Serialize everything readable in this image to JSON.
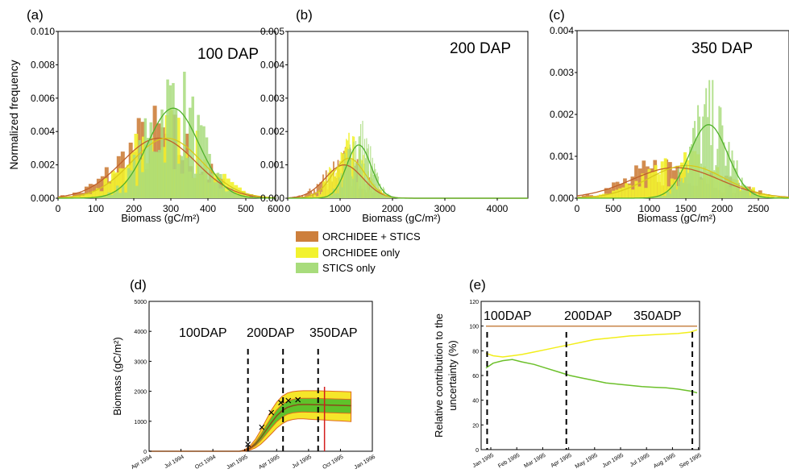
{
  "colors": {
    "orchidee_stics": "#cd7f3c",
    "orchidee_only": "#f2f22e",
    "stics_only": "#a8dc7c",
    "orchidee_stics_fit": "#c0602a",
    "stics_fit": "#4fb02a",
    "band_outer": "#f5e62a",
    "band_inner": "#5ec22a",
    "band_edge": "#e06a20",
    "mean_line": "#8a4a1a",
    "dash": "#000000",
    "end_line": "#d41c1c",
    "contrib_top": "#c8864a",
    "contrib_yellow": "#f2ee1a",
    "contrib_green": "#6cc02a"
  },
  "legend": {
    "items": [
      {
        "label": "ORCHIDEE + STICS",
        "color": "#cd7f3c"
      },
      {
        "label": "ORCHIDEE only",
        "color": "#f2f22e"
      },
      {
        "label": "STICS only",
        "color": "#a8dc7c"
      }
    ]
  },
  "chart_data": [
    {
      "panel": "(a)",
      "type": "bar",
      "annotation": "100 DAP",
      "ylabel": "Normalized frequency",
      "xlabel": "Biomass (gC/m²)",
      "xlim": [
        0,
        680
      ],
      "ylim": [
        0,
        0.01
      ],
      "xticks": [
        0,
        100,
        200,
        300,
        400,
        500,
        600
      ],
      "yticks": [
        "0.000",
        "0.002",
        "0.004",
        "0.006",
        "0.008",
        "0.010"
      ],
      "series": [
        {
          "name": "ORCHIDEE + STICS",
          "fit": {
            "mu": 315,
            "sigma": 115,
            "peak": 0.0036
          }
        },
        {
          "name": "ORCHIDEE only",
          "fit": {
            "mu": 340,
            "sigma": 110,
            "peak": 0.0036
          }
        },
        {
          "name": "STICS only",
          "fit": {
            "mu": 360,
            "sigma": 80,
            "peak": 0.0054
          }
        }
      ]
    },
    {
      "panel": "(b)",
      "type": "bar",
      "annotation": "200 DAP",
      "xlabel": "Biomass (gC/m²)",
      "xlim": [
        0,
        4900
      ],
      "ylim": [
        0,
        0.005
      ],
      "xticks": [
        0,
        1000,
        2000,
        3000,
        4000
      ],
      "yticks": [
        "0.000",
        "0.001",
        "0.002",
        "0.003",
        "0.004",
        "0.005"
      ],
      "series": [
        {
          "name": "ORCHIDEE + STICS",
          "fit": {
            "mu": 1150,
            "sigma": 380,
            "peak": 0.001
          }
        },
        {
          "name": "ORCHIDEE only",
          "fit": {
            "mu": 1250,
            "sigma": 330,
            "peak": 0.0012
          }
        },
        {
          "name": "STICS only",
          "fit": {
            "mu": 1450,
            "sigma": 250,
            "peak": 0.0016
          }
        }
      ]
    },
    {
      "panel": "(c)",
      "type": "bar",
      "annotation": "350 DAP",
      "xlabel": "Biomass (gC/m²)",
      "xlim": [
        0,
        2900
      ],
      "ylim": [
        0,
        0.0041
      ],
      "xticks": [
        0,
        500,
        1000,
        1500,
        2000,
        2500
      ],
      "yticks": [
        "0.000",
        "0.001",
        "0.002",
        "0.003",
        "0.004"
      ],
      "series": [
        {
          "name": "ORCHIDEE + STICS",
          "fit": {
            "mu": 1350,
            "sigma": 600,
            "peak": 0.00075
          }
        },
        {
          "name": "ORCHIDEE only",
          "fit": {
            "mu": 1500,
            "sigma": 520,
            "peak": 0.0008
          }
        },
        {
          "name": "STICS only",
          "fit": {
            "mu": 1800,
            "sigma": 260,
            "peak": 0.0018
          }
        }
      ]
    },
    {
      "panel": "(d)",
      "type": "line",
      "ylabel": "Biomass (gC/m²)",
      "ylim": [
        0,
        5000
      ],
      "yticks": [
        "0",
        "1000",
        "2000",
        "3000",
        "4000",
        "5000"
      ],
      "xticks": [
        "Apr 1994",
        "Jul 1994",
        "Oct 1994",
        "Jan 1995",
        "Apr 1995",
        "Jul 1995",
        "Oct 1995",
        "Jan 1996"
      ],
      "annotations": [
        "100DAP",
        "200DAP",
        "350DAP"
      ],
      "x_months": [
        0,
        0.5,
        1,
        1.5,
        2,
        2.5,
        3,
        3.5,
        4,
        4.5,
        5,
        5.5,
        6,
        6.5,
        7,
        7.5,
        8,
        8.5,
        9,
        9.5,
        10,
        10.5,
        11,
        11.5,
        12,
        12.5,
        13,
        13.5,
        14,
        14.5,
        15,
        15.5,
        16,
        16.5,
        17,
        17.5,
        18,
        18.5,
        19
      ],
      "mean": [
        0,
        0,
        0,
        0,
        0,
        0,
        0,
        0,
        0,
        0,
        0,
        0,
        0,
        0,
        0,
        0,
        0,
        0,
        20,
        100,
        240,
        450,
        700,
        950,
        1180,
        1350,
        1460,
        1520,
        1550,
        1560,
        1560,
        1555,
        1550,
        1545,
        1540,
        1535,
        1530,
        1525,
        1520
      ],
      "outer_low": [
        0,
        0,
        0,
        0,
        0,
        0,
        0,
        0,
        0,
        0,
        0,
        0,
        0,
        0,
        0,
        0,
        0,
        0,
        0,
        40,
        110,
        230,
        400,
        580,
        770,
        910,
        1010,
        1060,
        1080,
        1080,
        1070,
        1060,
        1050,
        1040,
        1030,
        1020,
        1010,
        1000,
        990
      ],
      "outer_high": [
        0,
        0,
        0,
        0,
        0,
        0,
        0,
        0,
        0,
        0,
        0,
        0,
        0,
        0,
        0,
        0,
        0,
        0,
        50,
        180,
        400,
        700,
        1040,
        1370,
        1640,
        1830,
        1940,
        1990,
        2010,
        2020,
        2020,
        2020,
        2015,
        2010,
        2005,
        2000,
        1995,
        1990,
        1985
      ],
      "inner_low": [
        0,
        0,
        0,
        0,
        0,
        0,
        0,
        0,
        0,
        0,
        0,
        0,
        0,
        0,
        0,
        0,
        0,
        0,
        10,
        75,
        180,
        350,
        560,
        780,
        980,
        1130,
        1230,
        1280,
        1300,
        1310,
        1305,
        1300,
        1295,
        1290,
        1285,
        1280,
        1275,
        1270,
        1265
      ],
      "inner_high": [
        0,
        0,
        0,
        0,
        0,
        0,
        0,
        0,
        0,
        0,
        0,
        0,
        0,
        0,
        0,
        0,
        0,
        0,
        30,
        130,
        310,
        560,
        850,
        1130,
        1380,
        1560,
        1670,
        1730,
        1760,
        1770,
        1770,
        1765,
        1760,
        1755,
        1750,
        1745,
        1740,
        1735,
        1730
      ],
      "observations": [
        {
          "x": 9.3,
          "y": 230
        },
        {
          "x": 10.6,
          "y": 800
        },
        {
          "x": 11.5,
          "y": 1290
        },
        {
          "x": 12.4,
          "y": 1620
        },
        {
          "x": 13.1,
          "y": 1690
        },
        {
          "x": 14.0,
          "y": 1720
        }
      ],
      "dashed_x_months": [
        9.3,
        12.6,
        15.9
      ],
      "end_x_months": 16.5
    },
    {
      "panel": "(e)",
      "type": "line",
      "ylabel": "Relative contribution to the uncertainty (%)",
      "ylim": [
        0,
        120
      ],
      "yticks": [
        "0",
        "20",
        "40",
        "60",
        "80",
        "100",
        "120"
      ],
      "xticks": [
        "Jan 1995",
        "Feb 1995",
        "Mar 1995",
        "Apr 1995",
        "May 1995",
        "Jun 1995",
        "Jul 1995",
        "Aug 1995",
        "Sep 1995"
      ],
      "annotations": [
        "100DAP",
        "200DAP",
        "350ADP"
      ],
      "x_months": [
        0.5,
        0.8,
        1.2,
        1.6,
        2.0,
        2.5,
        3,
        3.5,
        4,
        4.5,
        5,
        5.5,
        6,
        6.5,
        7,
        7.5,
        8,
        8.5,
        9,
        9.3
      ],
      "series": [
        {
          "name": "ORCHIDEE + STICS",
          "values": [
            100,
            100,
            100,
            100,
            100,
            100,
            100,
            100,
            100,
            100,
            100,
            100,
            100,
            100,
            100,
            100,
            100,
            100,
            100,
            100
          ]
        },
        {
          "name": "ORCHIDEE only",
          "values": [
            78,
            76,
            75,
            76,
            77,
            79,
            81,
            83,
            85,
            87,
            89,
            90,
            91,
            92,
            92.5,
            93,
            93.5,
            94,
            95,
            97
          ]
        },
        {
          "name": "STICS only",
          "values": [
            66,
            70,
            72,
            73,
            71,
            69,
            66,
            63,
            60,
            58,
            56,
            54,
            53,
            52,
            51,
            50.5,
            50,
            49,
            47.5,
            46
          ]
        }
      ],
      "dashed_x_months": [
        0.55,
        3.85,
        9.1
      ]
    }
  ]
}
